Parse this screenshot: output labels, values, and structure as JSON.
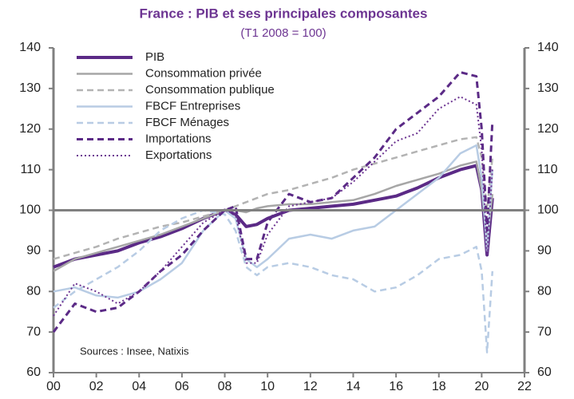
{
  "chart_data": {
    "type": "line",
    "title": "France : PIB et ses principales composantes",
    "subtitle": "(T1 2008 = 100)",
    "annotation": "Sources : Insee, Natixis",
    "x": [
      2000,
      2001,
      2002,
      2003,
      2004,
      2005,
      2006,
      2007,
      2008,
      2008.5,
      2009,
      2009.5,
      2010,
      2011,
      2012,
      2013,
      2014,
      2015,
      2016,
      2017,
      2018,
      2019,
      2019.75,
      2020.0,
      2020.25,
      2020.5
    ],
    "xlim": [
      2000,
      2022
    ],
    "xticks": [
      {
        "value": 2000,
        "label": "00"
      },
      {
        "value": 2002,
        "label": "02"
      },
      {
        "value": 2004,
        "label": "04"
      },
      {
        "value": 2006,
        "label": "06"
      },
      {
        "value": 2008,
        "label": "08"
      },
      {
        "value": 2010,
        "label": "10"
      },
      {
        "value": 2012,
        "label": "12"
      },
      {
        "value": 2014,
        "label": "14"
      },
      {
        "value": 2016,
        "label": "16"
      },
      {
        "value": 2018,
        "label": "18"
      },
      {
        "value": 2020,
        "label": "20"
      },
      {
        "value": 2022,
        "label": "22"
      }
    ],
    "ylim": [
      60,
      140
    ],
    "yticks": [
      60,
      70,
      80,
      90,
      100,
      110,
      120,
      130,
      140
    ],
    "y2lim": [
      60,
      140
    ],
    "y2ticks": [
      60,
      70,
      80,
      90,
      100,
      110,
      120,
      130,
      140
    ],
    "reference_line": 100,
    "legend": "upper left",
    "series": [
      {
        "name": "PIB",
        "color": "#5b2a86",
        "dash": "solid",
        "width": 4,
        "values": [
          86,
          88,
          89,
          90,
          92,
          93.5,
          95.5,
          98,
          100,
          99,
          96,
          96.5,
          98,
          100,
          100.5,
          101,
          101.5,
          102.5,
          103.5,
          105.5,
          108,
          110,
          111,
          105,
          89,
          103
        ]
      },
      {
        "name": "Consommation privée",
        "color": "#a6a6a6",
        "dash": "solid",
        "width": 2.5,
        "values": [
          85,
          88,
          89.5,
          91,
          92.5,
          94,
          96,
          98,
          100,
          100,
          99.5,
          100.5,
          101,
          101.5,
          101.5,
          102,
          102.5,
          104,
          106,
          107.5,
          109,
          111,
          112,
          105,
          92,
          104
        ]
      },
      {
        "name": "Consommation publique",
        "color": "#b3b3b3",
        "dash": "dashed",
        "width": 2.5,
        "values": [
          88,
          89.5,
          91,
          93,
          94.5,
          96,
          97,
          98.5,
          100,
          101,
          102,
          103,
          104,
          105,
          106.5,
          108,
          110,
          111.5,
          113,
          114.5,
          116,
          117.5,
          118,
          113,
          100,
          113
        ]
      },
      {
        "name": "FBCF Entreprises",
        "color": "#b8cce4",
        "dash": "solid",
        "width": 2.5,
        "values": [
          80,
          81,
          79,
          78.5,
          80,
          83,
          87,
          95,
          100,
          98,
          88,
          86,
          88,
          93,
          94,
          93,
          95,
          96,
          100,
          104,
          108,
          114,
          116,
          108,
          90,
          110
        ]
      },
      {
        "name": "FBCF Ménages",
        "color": "#b8cce4",
        "dash": "dashed",
        "width": 2.5,
        "values": [
          76,
          80,
          83,
          86,
          90,
          95,
          98,
          100,
          99,
          95,
          86,
          84,
          86,
          87,
          86,
          84,
          83,
          80,
          81,
          84,
          88,
          89,
          91,
          85,
          65,
          85
        ]
      },
      {
        "name": "Importations",
        "color": "#5b2a86",
        "dash": "dashed",
        "width": 3,
        "values": [
          70,
          77,
          75,
          76,
          80,
          85,
          89,
          95,
          100,
          101,
          88,
          88,
          97,
          104,
          102,
          103,
          108,
          113,
          120,
          124,
          128,
          134,
          133,
          120,
          95,
          122
        ]
      },
      {
        "name": "Exportations",
        "color": "#6d3592",
        "dash": "dotted",
        "width": 2,
        "values": [
          74,
          82,
          80,
          77,
          80,
          85,
          91,
          97,
          100,
          99,
          87,
          87,
          94,
          101,
          102,
          103,
          107,
          112,
          117,
          119,
          125,
          128,
          126,
          115,
          89,
          110
        ]
      }
    ]
  }
}
